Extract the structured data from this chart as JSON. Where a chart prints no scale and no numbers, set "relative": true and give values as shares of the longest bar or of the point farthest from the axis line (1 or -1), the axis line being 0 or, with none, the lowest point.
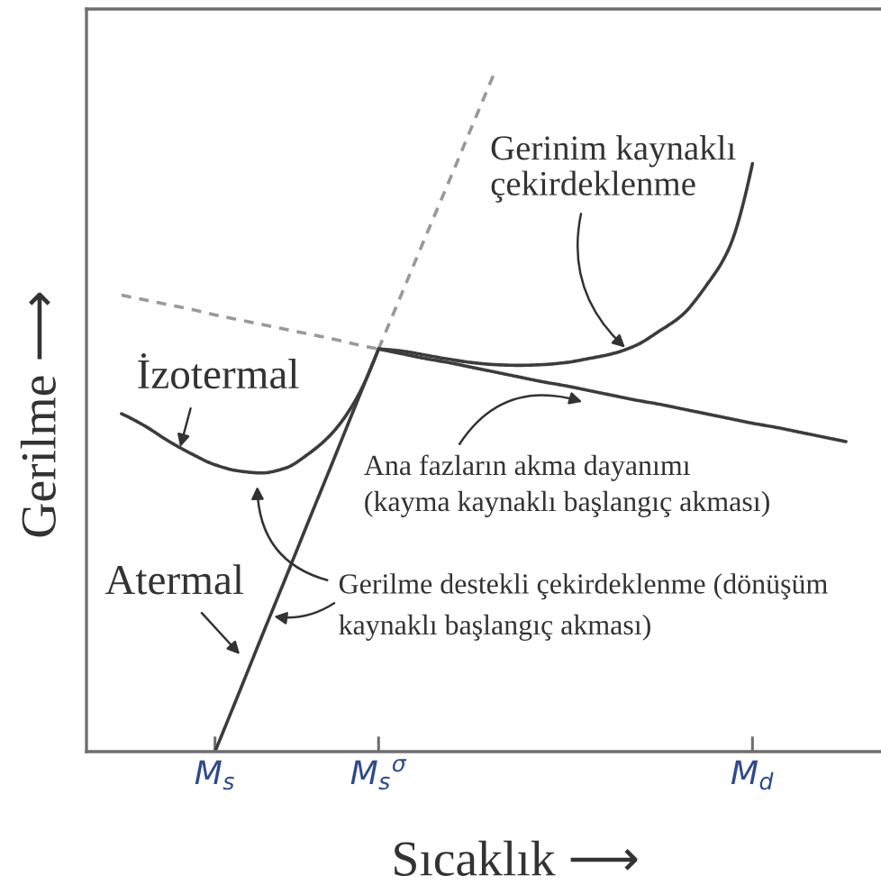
{
  "chart_data": {
    "type": "line",
    "relative": true,
    "xlabel": "Sıcaklık ⟶",
    "ylabel": "Gerilme ⟶",
    "tick_labels": "x",
    "categories": [
      null,
      null,
      null,
      null,
      null,
      "M$_{s}$",
      null,
      null,
      null,
      null,
      null,
      null,
      "M$_{s}$$^{σ}$",
      null,
      null,
      null,
      null,
      null,
      null,
      null,
      null,
      null,
      null,
      null,
      null,
      null,
      null,
      null,
      "M$_{d}$",
      null,
      null,
      null,
      null,
      null
    ],
    "series": [
      {
        "color": "#3c3c3c",
        "line_style": "solid",
        "values": [
          null,
          null,
          null,
          null,
          null,
          0,
          0.084,
          0.169,
          0.253,
          0.338,
          0.422,
          0.507,
          0.591,
          null,
          null,
          null,
          null,
          null,
          null,
          null,
          null,
          null,
          null,
          null,
          null,
          null,
          null,
          null,
          null,
          null,
          null,
          null,
          null,
          null
        ]
      },
      {
        "color": "#999999",
        "line_style": "dashed",
        "values": [
          null,
          null,
          null,
          null,
          null,
          null,
          null,
          null,
          null,
          null,
          null,
          null,
          0.591,
          0.673,
          0.755,
          0.836,
          0.918,
          1,
          null,
          null,
          null,
          null,
          null,
          null,
          null,
          null,
          null,
          null,
          null,
          null,
          null,
          null,
          null,
          null
        ]
      },
      {
        "color": "#999999",
        "line_style": "dashed",
        "values": [
          null,
          0.67,
          0.663,
          0.656,
          0.649,
          0.641,
          0.634,
          0.627,
          0.62,
          0.613,
          0.606,
          0.598,
          0.591,
          null,
          null,
          null,
          null,
          null,
          null,
          null,
          null,
          null,
          null,
          null,
          null,
          null,
          null,
          null,
          null,
          null,
          null,
          null,
          null,
          null
        ]
      },
      {
        "color": "#3c3c3c",
        "line_style": "solid",
        "values": [
          null,
          0.496,
          0.478,
          0.456,
          0.437,
          0.421,
          0.412,
          0.409,
          0.416,
          0.437,
          0.467,
          0.515,
          0.591,
          null,
          null,
          null,
          null,
          null,
          null,
          null,
          null,
          null,
          null,
          null,
          null,
          null,
          null,
          null,
          null,
          null,
          null,
          null,
          null,
          null
        ]
      },
      {
        "color": "#3c3c3c",
        "line_style": "solid",
        "values": [
          null,
          null,
          null,
          null,
          null,
          null,
          null,
          null,
          null,
          null,
          null,
          null,
          0.591,
          0.588,
          0.582,
          0.576,
          0.571,
          0.568,
          0.567,
          0.568,
          0.571,
          0.577,
          0.584,
          0.596,
          0.617,
          0.641,
          0.683,
          0.739,
          0.863,
          null,
          null,
          null,
          null,
          null
        ]
      },
      {
        "color": "#3c3c3c",
        "line_style": "solid",
        "values": [
          null,
          null,
          null,
          null,
          null,
          null,
          null,
          null,
          null,
          null,
          null,
          null,
          0.591,
          0.584,
          0.577,
          0.571,
          0.564,
          0.557,
          0.55,
          0.543,
          0.537,
          0.53,
          0.523,
          0.516,
          0.51,
          0.503,
          0.496,
          0.489,
          0.482,
          0.476,
          0.469,
          0.462,
          0.455,
          null
        ]
      }
    ],
    "annotations": [
      "Gerinim kaynaklı\nçekirdeklenme",
      "İzotermal",
      "Ana fazların akma dayanımı\n(kayma kaynaklı başlangıç akması)",
      "Atermal",
      "Gerilme destekli çekirdeklenme (dönüşüm\nkaynaklı başlangıç akması)"
    ]
  }
}
